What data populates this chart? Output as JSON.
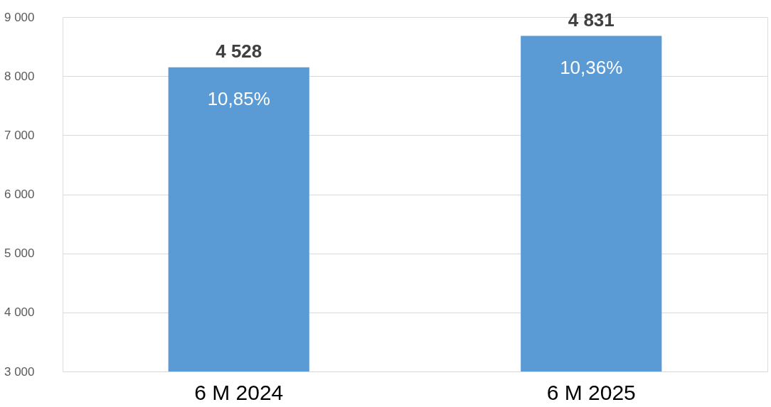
{
  "chart_data": {
    "type": "bar",
    "categories": [
      "6 M 2024",
      "6 M 2025"
    ],
    "values": [
      8150,
      8680
    ],
    "color": "#5b9bd5",
    "annotations": [
      {
        "text": "4 528",
        "x": "6 M 2024",
        "y": 8150
      },
      {
        "text": "4 831",
        "x": "6 M 2025",
        "y": 8680
      },
      {
        "text": "10,85%",
        "x": "6 M 2024",
        "y": 8150
      },
      {
        "text": "10,36%",
        "x": "6 M 2025",
        "y": 8680
      }
    ],
    "ylim": [
      3000,
      9000
    ],
    "yticks": [
      {
        "value": 3000,
        "label": "3 000"
      },
      {
        "value": 4000,
        "label": "4 000"
      },
      {
        "value": 5000,
        "label": "5 000"
      },
      {
        "value": 6000,
        "label": "6 000"
      },
      {
        "value": 7000,
        "label": "7 000"
      },
      {
        "value": 8000,
        "label": "8 000"
      },
      {
        "value": 9000,
        "label": "9 000"
      }
    ],
    "grid": "y"
  }
}
